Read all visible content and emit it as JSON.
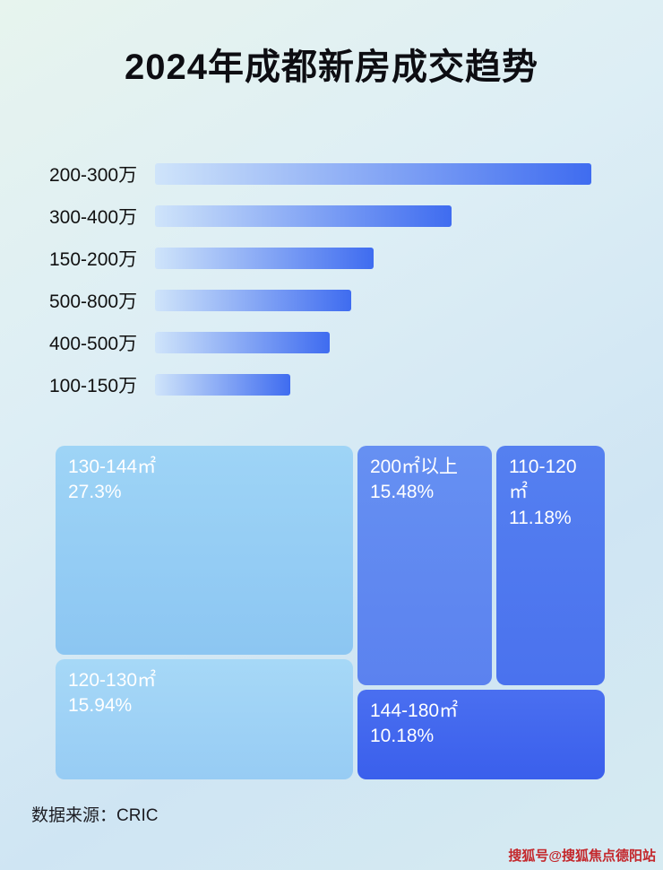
{
  "page": {
    "title": "2024年成都新房成交趋势",
    "source_label": "数据来源：CRIC",
    "watermark": "搜狐号@搜狐焦点德阳站"
  },
  "chart_data": [
    {
      "type": "bar",
      "orientation": "horizontal",
      "title": "2024年成都新房成交趋势",
      "categories": [
        "200-300万",
        "300-400万",
        "150-200万",
        "500-800万",
        "400-500万",
        "100-150万"
      ],
      "values": [
        100,
        68,
        50,
        45,
        40,
        31
      ],
      "value_note": "relative bar length, percent of longest bar (no numeric axis shown)",
      "bar_gradient": [
        "#cfe4fa",
        "#3f6cf0"
      ],
      "xlabel": "",
      "ylabel": "",
      "grid": false,
      "legend": false
    },
    {
      "type": "treemap",
      "items": [
        {
          "label": "130-144㎡",
          "value": "27.3%",
          "color_start": "#9ed4f6",
          "color_end": "#8cc6f2"
        },
        {
          "label": "200㎡以上",
          "value": "15.48%",
          "color_start": "#6690f2",
          "color_end": "#5b82ef"
        },
        {
          "label": "110-120㎡",
          "value": "11.18%",
          "color_start": "#5580f0",
          "color_end": "#4a72ee"
        },
        {
          "label": "120-130㎡",
          "value": "15.94%",
          "color_start": "#a6d8f7",
          "color_end": "#97ccf4"
        },
        {
          "label": "144-180㎡",
          "value": "10.18%",
          "color_start": "#4a6ff0",
          "color_end": "#3a5fec"
        }
      ],
      "legend": false
    }
  ]
}
